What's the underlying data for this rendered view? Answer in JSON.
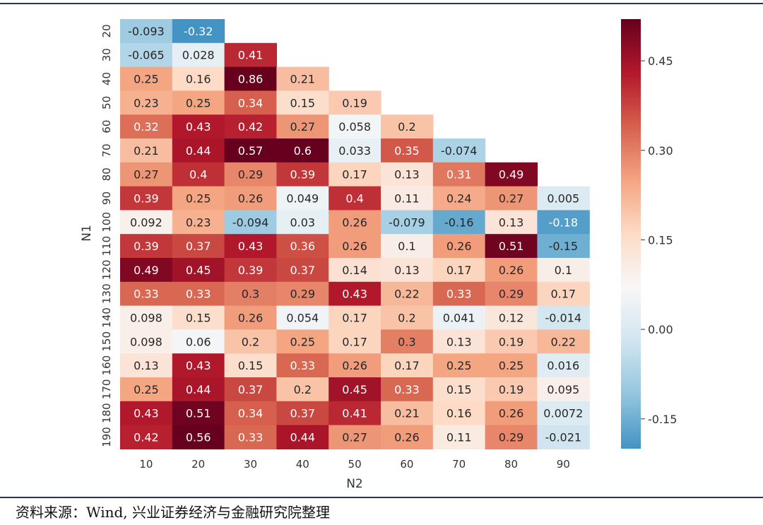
{
  "chart_data": {
    "type": "heatmap",
    "x_label": "N2",
    "y_label": "N1",
    "x_categories": [
      "10",
      "20",
      "30",
      "40",
      "50",
      "60",
      "70",
      "80",
      "90"
    ],
    "y_categories": [
      "20",
      "30",
      "40",
      "50",
      "60",
      "70",
      "80",
      "90",
      "100",
      "110",
      "120",
      "130",
      "140",
      "150",
      "160",
      "170",
      "180",
      "190"
    ],
    "values": [
      [
        -0.093,
        -0.32,
        null,
        null,
        null,
        null,
        null,
        null,
        null
      ],
      [
        -0.065,
        0.028,
        0.41,
        null,
        null,
        null,
        null,
        null,
        null
      ],
      [
        0.25,
        0.16,
        0.86,
        0.21,
        null,
        null,
        null,
        null,
        null
      ],
      [
        0.23,
        0.25,
        0.34,
        0.15,
        0.19,
        null,
        null,
        null,
        null
      ],
      [
        0.32,
        0.43,
        0.42,
        0.27,
        0.058,
        0.2,
        null,
        null,
        null
      ],
      [
        0.21,
        0.44,
        0.57,
        0.6,
        0.033,
        0.35,
        -0.074,
        null,
        null
      ],
      [
        0.27,
        0.4,
        0.29,
        0.39,
        0.17,
        0.13,
        0.31,
        0.49,
        null
      ],
      [
        0.39,
        0.25,
        0.26,
        0.049,
        0.4,
        0.11,
        0.24,
        0.27,
        0.005
      ],
      [
        0.092,
        0.23,
        -0.094,
        0.03,
        0.26,
        -0.079,
        -0.16,
        0.13,
        -0.18
      ],
      [
        0.39,
        0.37,
        0.43,
        0.36,
        0.26,
        0.1,
        0.26,
        0.51,
        -0.15
      ],
      [
        0.49,
        0.45,
        0.39,
        0.37,
        0.14,
        0.13,
        0.17,
        0.26,
        0.1
      ],
      [
        0.33,
        0.33,
        0.3,
        0.29,
        0.43,
        0.22,
        0.33,
        0.29,
        0.17
      ],
      [
        0.098,
        0.15,
        0.26,
        0.054,
        0.17,
        0.2,
        0.041,
        0.12,
        -0.014
      ],
      [
        0.098,
        0.06,
        0.2,
        0.25,
        0.17,
        0.3,
        0.13,
        0.19,
        0.22
      ],
      [
        0.13,
        0.43,
        0.15,
        0.33,
        0.26,
        0.17,
        0.25,
        0.25,
        0.016
      ],
      [
        0.25,
        0.44,
        0.37,
        0.2,
        0.45,
        0.33,
        0.15,
        0.19,
        0.095
      ],
      [
        0.43,
        0.51,
        0.34,
        0.37,
        0.41,
        0.21,
        0.16,
        0.26,
        0.0072
      ],
      [
        0.42,
        0.56,
        0.33,
        0.44,
        0.27,
        0.26,
        0.11,
        0.29,
        -0.021
      ]
    ],
    "colorbar": {
      "min": -0.2,
      "max": 0.52,
      "ticks": [
        -0.15,
        0.0,
        0.15,
        0.3,
        0.45
      ],
      "tick_labels": [
        "-0.15",
        "0.00",
        "0.15",
        "0.30",
        "0.45"
      ]
    },
    "colormap": [
      "#4393c3",
      "#92c5de",
      "#d1e5f0",
      "#f7f7f7",
      "#fddbc7",
      "#f4a582",
      "#d6604d",
      "#b2182b",
      "#67001f"
    ]
  },
  "source_text": "资料来源：Wind, 兴业证券经济与金融研究院整理"
}
